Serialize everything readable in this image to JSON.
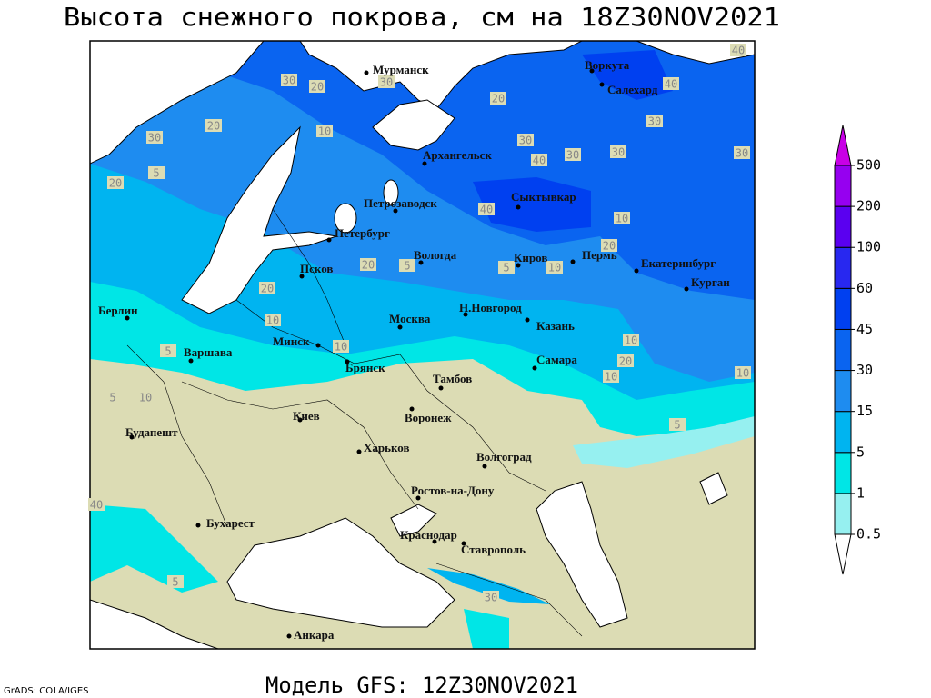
{
  "title": "Высота снежного покрова, см на 18Z30NOV2021",
  "subtitle": "Модель GFS: 12Z30NOV2021",
  "credit": "GrADS: COLA/IGES",
  "colorbar": {
    "levels": [
      0.5,
      1,
      5,
      15,
      30,
      45,
      60,
      100,
      200,
      500
    ],
    "colors": [
      "#ffffff",
      "#96f0f0",
      "#00e6e6",
      "#00b4f0",
      "#1e8cf0",
      "#0a64f0",
      "#0040f0",
      "#2828f0",
      "#5a00f0",
      "#9600f0",
      "#c800e6"
    ]
  },
  "cities": [
    "Мурманск",
    "Воркута",
    "Салехард",
    "Архангельск",
    "Сыктывкар",
    "Петрозаводск",
    "Петербург",
    "Вологда",
    "Киров",
    "Пермь",
    "Екатеринбург",
    "Курган",
    "Псков",
    "Берлин",
    "Н.Новгород",
    "Москва",
    "Казань",
    "Минск",
    "Варшава",
    "Самара",
    "Брянск",
    "Тамбов",
    "Киев",
    "Воронеж",
    "Будапешт",
    "Харьков",
    "Волгоград",
    "Ростов-на-Дону",
    "Бухарест",
    "Краснодар",
    "Ставрополь",
    "Анкара"
  ],
  "contour_labels": [
    30,
    20,
    30,
    20,
    30,
    40,
    30,
    30,
    30,
    40,
    40,
    30,
    20,
    30,
    5,
    20,
    10,
    40,
    20,
    10,
    10,
    5,
    5,
    20,
    20,
    10,
    10,
    5,
    5,
    10,
    10,
    20,
    10,
    10,
    5,
    40,
    5,
    30
  ]
}
